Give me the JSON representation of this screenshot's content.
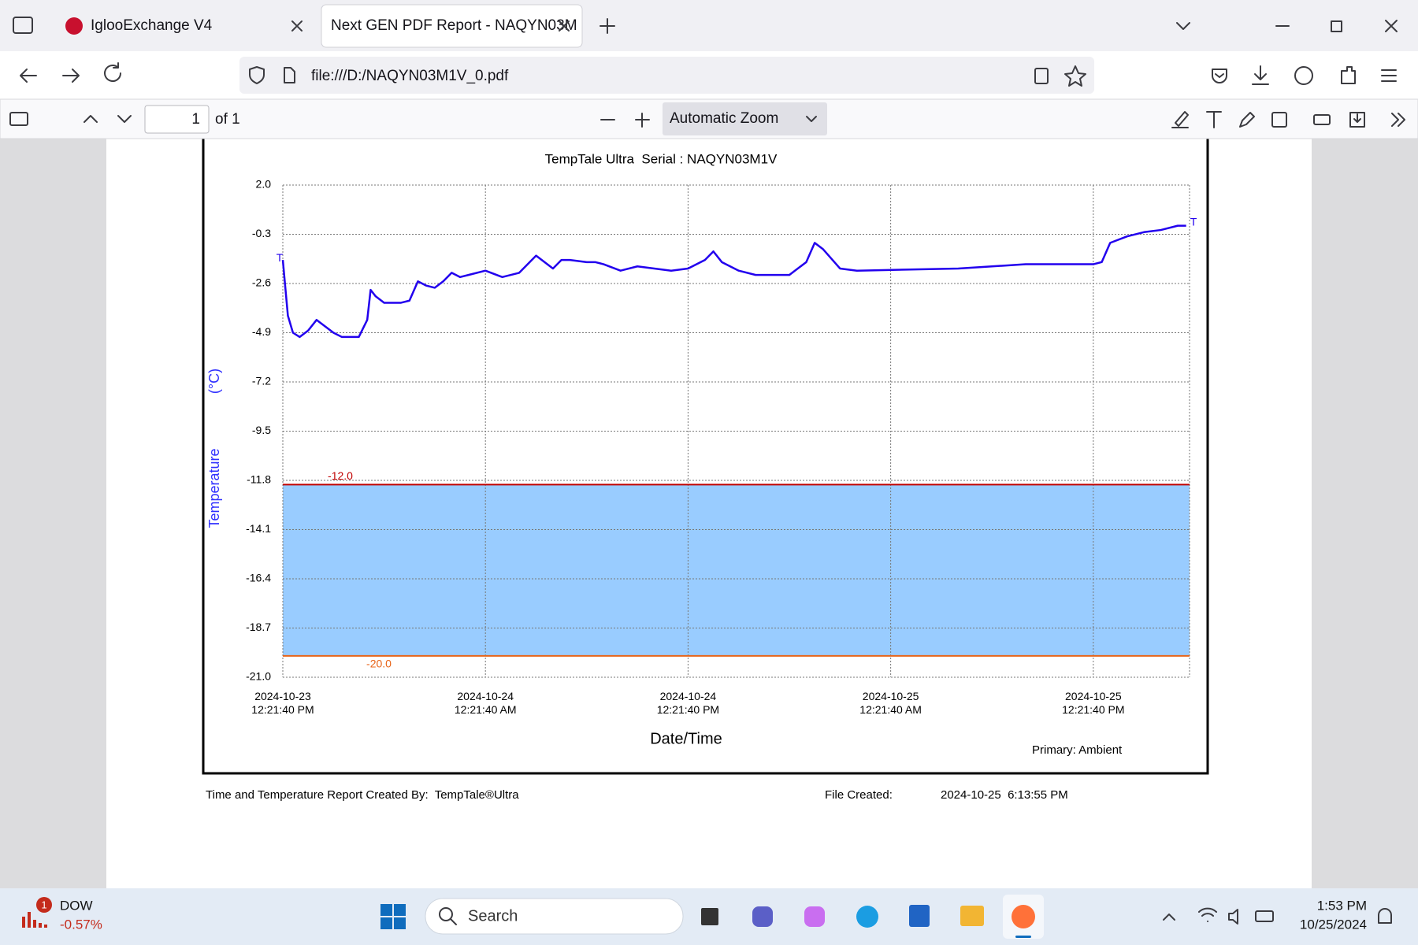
{
  "browser": {
    "tabs": [
      {
        "title": "IglooExchange V4"
      },
      {
        "title": "Next GEN PDF Report - NAQYN03M"
      }
    ],
    "url": "file:///D:/NAQYN03M1V_0.pdf"
  },
  "pdf_toolbar": {
    "page": "1",
    "page_count": "of 1",
    "zoom": "Automatic Zoom"
  },
  "chart_data": {
    "type": "line",
    "title": "TempTale Ultra  Serial : NAQYN03M1V",
    "y_label": "Temperature",
    "y_unit": "(°C)",
    "x_label": "Date/Time",
    "legend_note": "Primary: Ambient",
    "start_marker": "T",
    "end_marker": "T",
    "grid": true,
    "ylim": [
      -21,
      2
    ],
    "yticks": [
      {
        "value": 2,
        "label": "2.0"
      },
      -0.3,
      -2.6,
      -4.9,
      -7.2,
      -9.5,
      -11.8,
      -14.1,
      -16.4,
      -18.7,
      {
        "value": -21,
        "label": "-21.0"
      }
    ],
    "xlim": [
      "2024-10-23T12:21:40",
      "2024-10-25T18:03:40"
    ],
    "xticks": [
      {
        "value": "2024-10-23T12:21:40",
        "label": "2024-10-23 12:21:40 PM"
      },
      {
        "value": "2024-10-24T00:21:40",
        "label": "2024-10-24 12:21:40 AM"
      },
      {
        "value": "2024-10-24T12:21:40",
        "label": "2024-10-24 12:21:40 PM"
      },
      {
        "value": "2024-10-25T00:21:40",
        "label": "2024-10-25 12:21:40 AM"
      },
      {
        "value": "2024-10-25T12:21:40",
        "label": "2024-10-25 12:21:40 PM"
      }
    ],
    "limits": [
      {
        "value": -12,
        "label": "-12.0",
        "color": "#c00000"
      },
      {
        "value": -20,
        "label": "-20.0",
        "color": "#e8651a"
      }
    ],
    "band_color": "#99ccff",
    "x": [
      "2024-10-23T12:21:40",
      "2024-10-23T12:39:40",
      "2024-10-23T12:57:40",
      "2024-10-23T13:21:40",
      "2024-10-23T13:51:40",
      "2024-10-23T14:21:40",
      "2024-10-23T14:51:40",
      "2024-10-23T15:21:40",
      "2024-10-23T15:51:40",
      "2024-10-23T16:21:40",
      "2024-10-23T16:51:40",
      "2024-10-23T17:21:40",
      "2024-10-23T17:33:40",
      "2024-10-23T17:51:40",
      "2024-10-23T18:21:40",
      "2024-10-23T19:21:40",
      "2024-10-23T19:51:40",
      "2024-10-23T20:21:40",
      "2024-10-23T20:51:40",
      "2024-10-23T21:21:40",
      "2024-10-23T21:51:40",
      "2024-10-23T22:21:40",
      "2024-10-23T22:51:40",
      "2024-10-23T23:21:40",
      "2024-10-24T00:21:40",
      "2024-10-24T01:21:40",
      "2024-10-24T02:21:40",
      "2024-10-24T03:21:40",
      "2024-10-24T04:21:40",
      "2024-10-24T04:51:40",
      "2024-10-24T05:21:40",
      "2024-10-24T06:21:40",
      "2024-10-24T06:51:40",
      "2024-10-24T07:21:40",
      "2024-10-24T08:21:40",
      "2024-10-24T09:21:40",
      "2024-10-24T10:21:40",
      "2024-10-24T11:21:40",
      "2024-10-24T12:21:40",
      "2024-10-24T13:21:40",
      "2024-10-24T13:51:40",
      "2024-10-24T14:21:40",
      "2024-10-24T15:21:40",
      "2024-10-24T16:21:40",
      "2024-10-24T18:21:40",
      "2024-10-24T19:21:40",
      "2024-10-24T19:51:40",
      "2024-10-24T20:21:40",
      "2024-10-24T21:21:40",
      "2024-10-24T22:21:40",
      "2024-10-25T04:21:40",
      "2024-10-25T06:21:40",
      "2024-10-25T08:21:40",
      "2024-10-25T10:21:40",
      "2024-10-25T12:21:40",
      "2024-10-25T12:51:40",
      "2024-10-25T13:21:40",
      "2024-10-25T14:21:40",
      "2024-10-25T15:21:40",
      "2024-10-25T16:21:40",
      "2024-10-25T17:21:40",
      "2024-10-25T17:51:40"
    ],
    "series": [
      {
        "name": "Ambient",
        "color": "#2200ee",
        "values": [
          -1.5,
          -4.1,
          -4.9,
          -5.1,
          -4.8,
          -4.3,
          -4.6,
          -4.9,
          -5.1,
          -5.1,
          -5.1,
          -4.3,
          -2.9,
          -3.2,
          -3.5,
          -3.5,
          -3.4,
          -2.5,
          -2.7,
          -2.8,
          -2.5,
          -2.1,
          -2.3,
          -2.2,
          -2.0,
          -2.3,
          -2.1,
          -1.3,
          -1.9,
          -1.5,
          -1.5,
          -1.6,
          -1.6,
          -1.7,
          -2.0,
          -1.8,
          -1.9,
          -2.0,
          -1.9,
          -1.5,
          -1.1,
          -1.6,
          -2.0,
          -2.2,
          -2.2,
          -1.6,
          -0.7,
          -1.0,
          -1.9,
          -2.0,
          -1.9,
          -1.8,
          -1.7,
          -1.7,
          -1.7,
          -1.6,
          -0.7,
          -0.4,
          -0.2,
          -0.1,
          0.1,
          0.1
        ]
      }
    ]
  },
  "report_footer": {
    "created_by": "Time and Temperature Report Created By:  TempTale®Ultra",
    "file_created_label": "File Created:",
    "file_created": "2024-10-25  6:13:55 PM"
  },
  "taskbar": {
    "ticker": "DOW",
    "change": "-0.57%",
    "badge": "1",
    "search": "Search",
    "time": "1:53 PM",
    "date": "10/25/2024"
  }
}
